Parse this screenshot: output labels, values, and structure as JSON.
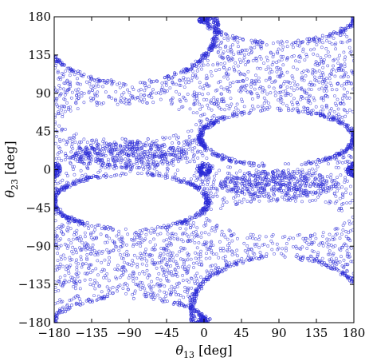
{
  "chart_data": {
    "type": "scatter",
    "xlabel": {
      "symbol": "θ",
      "sub": "13",
      "unit": " [deg]"
    },
    "ylabel": {
      "symbol": "θ",
      "sub": "23",
      "unit": " [deg]"
    },
    "xlim": [
      -180,
      180
    ],
    "ylim": [
      -180,
      180
    ],
    "xticks": [
      -180,
      -135,
      -90,
      -45,
      0,
      45,
      90,
      135,
      180
    ],
    "yticks": [
      -180,
      -135,
      -90,
      -45,
      0,
      45,
      90,
      135,
      180
    ],
    "xtick_labels": [
      "−180",
      "−135",
      "−90",
      "−45",
      "0",
      "45",
      "90",
      "135",
      "180"
    ],
    "ytick_labels": [
      "−180",
      "−135",
      "−90",
      "−45",
      "0",
      "45",
      "90",
      "135",
      "180"
    ],
    "grid": false,
    "marker": "open circle",
    "point_color": "#2a2ad6",
    "crossings": [
      {
        "x": -90,
        "y": 102
      },
      {
        "x": 90,
        "y": 77
      },
      {
        "x": -90,
        "y": -77
      },
      {
        "x": 90,
        "y": -102
      }
    ],
    "islands": [
      {
        "x": -90,
        "y": 17
      },
      {
        "x": 90,
        "y": -17
      }
    ],
    "hotspots": [
      {
        "x": 0,
        "y": 0
      },
      {
        "x": -180,
        "y": 0
      },
      {
        "x": 180,
        "y": 0
      },
      {
        "x": 0,
        "y": 180
      },
      {
        "x": 0,
        "y": -180
      }
    ],
    "white_regions": [
      {
        "name": "top-left-lens",
        "center_x": -90,
        "top_y": 180,
        "bottom_y": 102,
        "width_at_top": 200
      },
      {
        "name": "top-right-lens",
        "center_x": 90,
        "top_y": 180,
        "bottom_y": 150,
        "width_at_top": 170
      },
      {
        "name": "upper-left-lens",
        "center_x": -90,
        "top_y": 75,
        "bottom_y": 35,
        "width": 170
      },
      {
        "name": "upper-right-lens",
        "center_x": 90,
        "top_y": 70,
        "bottom_y": 5,
        "width": 190
      },
      {
        "name": "lower-left-lens",
        "center_x": -90,
        "top_y": -5,
        "bottom_y": -70,
        "width": 190
      },
      {
        "name": "lower-right-lens",
        "center_x": 90,
        "top_y": -35,
        "bottom_y": -75,
        "width": 170
      },
      {
        "name": "bottom-left-lens",
        "center_x": -90,
        "top_y": -150,
        "bottom_y": -180,
        "width_at_bottom": 170
      },
      {
        "name": "bottom-right-lens",
        "center_x": 90,
        "top_y": -102,
        "bottom_y": -180,
        "width_at_bottom": 200
      }
    ]
  }
}
